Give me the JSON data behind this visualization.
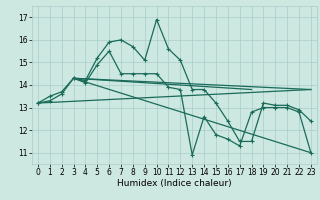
{
  "title": "",
  "xlabel": "Humidex (Indice chaleur)",
  "background_color": "#cce8e0",
  "grid_color": "#aacccc",
  "line_color": "#1a6b5a",
  "xlim": [
    -0.5,
    23.5
  ],
  "ylim": [
    10.5,
    17.5
  ],
  "yticks": [
    11,
    12,
    13,
    14,
    15,
    16,
    17
  ],
  "xticks": [
    0,
    1,
    2,
    3,
    4,
    5,
    6,
    7,
    8,
    9,
    10,
    11,
    12,
    13,
    14,
    15,
    16,
    17,
    18,
    19,
    20,
    21,
    22,
    23
  ],
  "series1_x": [
    0,
    1,
    2,
    3,
    4,
    5,
    6,
    7,
    8,
    9,
    10,
    11,
    12,
    13,
    14,
    15,
    16,
    17,
    18,
    19,
    20,
    21,
    22,
    23
  ],
  "series1_y": [
    13.2,
    13.5,
    13.7,
    14.3,
    14.2,
    15.2,
    15.9,
    16.0,
    15.7,
    15.1,
    16.9,
    15.6,
    15.1,
    13.8,
    13.8,
    13.2,
    12.4,
    11.5,
    11.5,
    13.2,
    13.1,
    13.1,
    12.9,
    12.4
  ],
  "series2_x": [
    0,
    1,
    2,
    3,
    4,
    5,
    6,
    7,
    8,
    9,
    10,
    11,
    12,
    13,
    14,
    15,
    16,
    17,
    18,
    19,
    20,
    21,
    22,
    23
  ],
  "series2_y": [
    13.2,
    13.3,
    13.6,
    14.3,
    14.1,
    14.9,
    15.5,
    14.5,
    14.5,
    14.5,
    14.5,
    13.9,
    13.8,
    10.9,
    12.6,
    11.8,
    11.6,
    11.3,
    12.8,
    13.0,
    13.0,
    13.0,
    12.8,
    11.0
  ],
  "trend1_x": [
    0,
    23
  ],
  "trend1_y": [
    13.2,
    13.8
  ],
  "trend2_x": [
    3,
    23
  ],
  "trend2_y": [
    14.3,
    11.0
  ],
  "trend3_x": [
    3,
    18
  ],
  "trend3_y": [
    14.3,
    13.8
  ],
  "trend4_x": [
    3,
    23
  ],
  "trend4_y": [
    14.3,
    13.8
  ]
}
